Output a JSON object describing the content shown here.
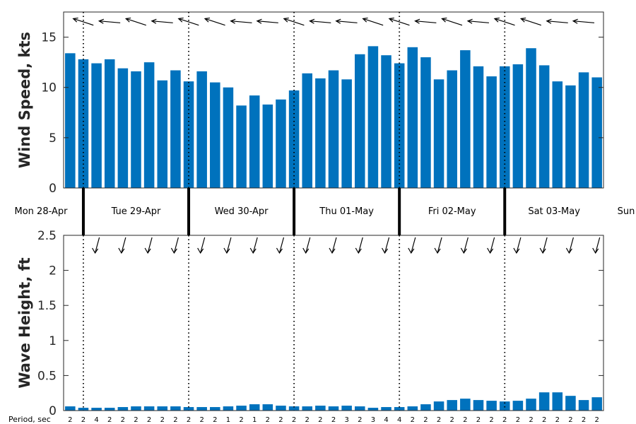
{
  "chart_data": [
    {
      "type": "bar",
      "ylabel": "Wind Speed, kts",
      "ylim": [
        0,
        17.5
      ],
      "yticks": [
        "0",
        "5",
        "10",
        "15"
      ],
      "bar_color": "#0072BD",
      "values": [
        13.4,
        12.8,
        12.4,
        12.8,
        11.9,
        11.6,
        12.5,
        10.7,
        11.7,
        10.6,
        11.6,
        10.5,
        10.0,
        8.2,
        9.2,
        8.3,
        8.8,
        9.7,
        11.4,
        10.9,
        11.7,
        10.8,
        13.3,
        14.1,
        13.2,
        12.4,
        14.0,
        13.0,
        10.8,
        11.7,
        13.7,
        12.1,
        11.1,
        12.1,
        12.3,
        13.9,
        12.2,
        10.6,
        10.2,
        11.5,
        11.0
      ],
      "wind_arrow_note": "arrows show wind direction, mostly from the east/northeast"
    },
    {
      "type": "bar",
      "ylabel": "Wave Height, ft",
      "ylim": [
        0,
        2.5
      ],
      "yticks": [
        "0",
        "0.5",
        "1",
        "1.5",
        "2",
        "2.5"
      ],
      "bar_color": "#0072BD",
      "values": [
        0.06,
        0.04,
        0.04,
        0.04,
        0.05,
        0.06,
        0.06,
        0.06,
        0.06,
        0.05,
        0.05,
        0.05,
        0.06,
        0.07,
        0.09,
        0.09,
        0.07,
        0.06,
        0.06,
        0.07,
        0.06,
        0.07,
        0.06,
        0.04,
        0.05,
        0.05,
        0.06,
        0.09,
        0.13,
        0.15,
        0.17,
        0.15,
        0.14,
        0.13,
        0.14,
        0.17,
        0.26,
        0.26,
        0.21,
        0.15,
        0.19
      ],
      "period_label": "Period, sec",
      "periods": [
        "2",
        "2",
        "4",
        "2",
        "2",
        "2",
        "2",
        "2",
        "2",
        "2",
        "2",
        "2",
        "1",
        "2",
        "1",
        "2",
        "2",
        "2",
        "2",
        "2",
        "2",
        "3",
        "2",
        "3",
        "4",
        "4",
        "2",
        "2",
        "2",
        "2",
        "2",
        "2",
        "2",
        "2",
        "2",
        "2",
        "2",
        "2",
        "2",
        "2",
        "2"
      ]
    }
  ],
  "day_labels": [
    "Mon 28-Apr",
    "Tue 29-Apr",
    "Wed 30-Apr",
    "Thu 01-May",
    "Fri 02-May",
    "Sat 03-May",
    "Sun"
  ]
}
